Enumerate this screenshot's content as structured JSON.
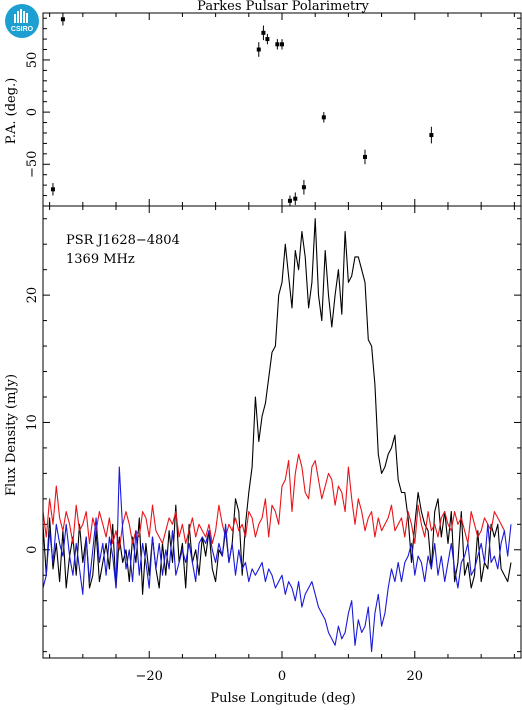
{
  "figure": {
    "title": "Parkes Pulsar Polarimetry",
    "annotation_lines": [
      "PSR J1628−4804",
      "1369 MHz"
    ],
    "logo_text": "CSIRO",
    "logo_color": "#1e9fd1"
  },
  "chart_data": [
    {
      "type": "scatter",
      "panel": "top",
      "xlabel": "",
      "ylabel": "P.A. (deg.)",
      "xlim": [
        -36,
        36
      ],
      "ylim": [
        -90,
        95
      ],
      "yticks": [
        -50,
        0,
        50
      ],
      "ytick_labels": [
        "−50",
        "0",
        "50"
      ],
      "xticks": [
        -20,
        0,
        20
      ],
      "points": [
        {
          "x": -34.5,
          "y": -74,
          "err": 6
        },
        {
          "x": -33.0,
          "y": 89,
          "err": 6
        },
        {
          "x": -3.5,
          "y": 60,
          "err": 7
        },
        {
          "x": -2.8,
          "y": 76,
          "err": 7
        },
        {
          "x": -2.2,
          "y": 70,
          "err": 5
        },
        {
          "x": -0.7,
          "y": 65,
          "err": 5
        },
        {
          "x": 0.0,
          "y": 65,
          "err": 5
        },
        {
          "x": 1.2,
          "y": -85,
          "err": 5
        },
        {
          "x": 2.0,
          "y": -83,
          "err": 6
        },
        {
          "x": 3.3,
          "y": -72,
          "err": 7
        },
        {
          "x": 6.3,
          "y": -5,
          "err": 5
        },
        {
          "x": 12.5,
          "y": -43,
          "err": 7
        },
        {
          "x": 22.5,
          "y": -22,
          "err": 8
        }
      ],
      "color": "#000000"
    },
    {
      "type": "line",
      "panel": "bottom",
      "xlabel": "Pulse Longitude (deg)",
      "ylabel": "Flux Density (mJy)",
      "xlim": [
        -36,
        36
      ],
      "ylim": [
        -8.5,
        27
      ],
      "xticks": [
        -20,
        0,
        20
      ],
      "xtick_labels": [
        "−20",
        "0",
        "20"
      ],
      "yticks": [
        0,
        10,
        20
      ],
      "ytick_labels": [
        "0",
        "10",
        "20"
      ],
      "x_start": -36,
      "x_step": 0.5,
      "series": [
        {
          "name": "",
          "color": "#000000",
          "values": [
            2.0,
            -2.0,
            2.5,
            -1.5,
            0.5,
            -2.5,
            1.5,
            -3.0,
            -0.5,
            1.0,
            -2.0,
            2.0,
            -1.0,
            1.0,
            -3.0,
            -2.0,
            1.5,
            -2.5,
            -1.0,
            0.5,
            -1.5,
            2.0,
            -3.0,
            1.0,
            -1.0,
            0.0,
            -2.5,
            1.0,
            -1.0,
            2.5,
            -3.5,
            0.5,
            -2.0,
            1.0,
            -1.5,
            -3.0,
            0.5,
            -2.0,
            1.5,
            -1.0,
            3.5,
            -1.0,
            0.5,
            -3.0,
            2.0,
            -1.0,
            0.0,
            -2.0,
            1.0,
            -0.5,
            1.5,
            -1.5,
            -2.5,
            0.0,
            -0.5,
            1.5,
            -1.0,
            0.5,
            4.0,
            3.0,
            -2.0,
            2.0,
            4.5,
            6.5,
            12.0,
            8.5,
            10.5,
            11.5,
            13.5,
            15.5,
            16.0,
            20.0,
            21.0,
            24.0,
            21.5,
            19.0,
            23.5,
            22.0,
            25.0,
            23.0,
            19.0,
            21.0,
            26.0,
            20.0,
            18.0,
            23.5,
            20.0,
            17.5,
            20.0,
            22.0,
            18.5,
            25.0,
            21.0,
            21.5,
            23.0,
            23.0,
            22.0,
            21.0,
            16.5,
            16.0,
            13.0,
            7.5,
            6.0,
            6.5,
            7.5,
            8.0,
            9.0,
            5.5,
            4.5,
            4.5,
            2.5,
            -1.0,
            2.0,
            4.5,
            3.0,
            2.0,
            1.5,
            -1.5,
            3.0,
            4.0,
            1.0,
            3.0,
            0.5,
            3.0,
            -2.5,
            -1.0,
            3.0,
            -2.0,
            -1.0,
            -3.0,
            -2.0,
            1.5,
            -2.5,
            -1.0,
            -1.5,
            2.0,
            1.0,
            2.0,
            -1.5,
            -2.0,
            -2.5,
            -1.0
          ]
        },
        {
          "name": "",
          "color": "#e8151b",
          "values": [
            3.0,
            1.0,
            4.0,
            2.0,
            5.0,
            2.5,
            1.5,
            3.0,
            2.0,
            0.5,
            3.5,
            1.5,
            2.0,
            3.0,
            0.5,
            2.5,
            1.5,
            3.0,
            2.0,
            1.0,
            2.5,
            0.5,
            1.5,
            0.0,
            2.0,
            3.0,
            2.0,
            0.5,
            1.5,
            1.0,
            3.0,
            2.5,
            1.0,
            3.5,
            1.5,
            1.0,
            0.5,
            1.5,
            2.5,
            2.0,
            3.0,
            1.0,
            2.0,
            0.5,
            1.5,
            2.5,
            1.0,
            2.0,
            1.5,
            1.0,
            2.0,
            0.5,
            1.5,
            3.5,
            2.0,
            1.0,
            2.0,
            1.5,
            2.5,
            1.5,
            2.0,
            1.0,
            3.0,
            2.5,
            1.0,
            2.0,
            2.5,
            4.0,
            1.0,
            3.5,
            3.0,
            2.0,
            5.0,
            5.5,
            7.0,
            3.0,
            6.0,
            7.5,
            6.5,
            4.5,
            4.0,
            6.5,
            7.0,
            5.5,
            4.0,
            5.0,
            6.0,
            5.5,
            3.5,
            5.0,
            4.5,
            3.0,
            6.5,
            4.0,
            2.0,
            4.0,
            3.0,
            1.5,
            2.5,
            3.0,
            1.0,
            2.5,
            1.5,
            2.0,
            2.5,
            3.5,
            1.5,
            2.0,
            2.5,
            1.0,
            3.0,
            2.0,
            0.5,
            3.5,
            2.0,
            1.0,
            3.0,
            1.5,
            2.0,
            1.0,
            2.5,
            3.0,
            2.0,
            1.5,
            3.0,
            2.0,
            2.5,
            1.5,
            0.5,
            3.0,
            2.0,
            1.0,
            1.5,
            2.5,
            2.0,
            1.5,
            3.0,
            2.5,
            2.0,
            1.5
          ]
        },
        {
          "name": "",
          "color": "#1a1ad8",
          "values": [
            -3.0,
            -2.0,
            1.5,
            -1.0,
            2.0,
            0.5,
            -0.5,
            2.0,
            -0.5,
            -2.0,
            0.5,
            -1.5,
            -3.5,
            1.0,
            -2.5,
            0.0,
            2.5,
            -1.0,
            0.5,
            -2.0,
            1.0,
            -0.5,
            -3.0,
            6.5,
            1.5,
            -1.5,
            0.0,
            -2.5,
            1.5,
            -2.0,
            0.5,
            -1.0,
            -3.0,
            1.0,
            -1.5,
            0.5,
            -2.0,
            0.0,
            -1.5,
            1.5,
            -2.0,
            -1.0,
            0.0,
            -1.0,
            0.5,
            -1.0,
            -2.5,
            0.5,
            1.0,
            0.5,
            1.5,
            0.0,
            -1.0,
            0.5,
            -0.5,
            2.0,
            -1.0,
            0.5,
            -2.0,
            0.0,
            -1.5,
            -1.0,
            -2.5,
            -1.5,
            -2.0,
            -1.5,
            -1.0,
            -2.5,
            -1.5,
            -2.0,
            -3.0,
            -2.5,
            -2.0,
            -3.5,
            -2.5,
            -3.0,
            -4.0,
            -2.5,
            -4.5,
            -3.5,
            -3.0,
            -2.5,
            -3.5,
            -4.5,
            -5.0,
            -5.5,
            -6.5,
            -7.0,
            -7.5,
            -6.0,
            -7.0,
            -6.5,
            -5.0,
            -4.0,
            -7.5,
            -5.5,
            -6.5,
            -6.0,
            -4.5,
            -8.0,
            -5.0,
            -3.5,
            -6.0,
            -5.0,
            -3.0,
            -1.5,
            -2.5,
            -1.0,
            -2.5,
            -1.0,
            -0.5,
            0.5,
            -2.0,
            -0.5,
            -1.0,
            -2.5,
            -0.5,
            -1.5,
            0.5,
            -2.0,
            -0.5,
            -2.5,
            -1.0,
            0.5,
            -1.5,
            -3.0,
            -1.0,
            -0.5,
            0.5,
            -2.0,
            -1.5,
            -0.5,
            0.5,
            -1.0,
            2.0,
            -1.0,
            -0.5,
            -1.5,
            0.5,
            1.5,
            -0.5,
            2.0
          ]
        }
      ]
    }
  ]
}
